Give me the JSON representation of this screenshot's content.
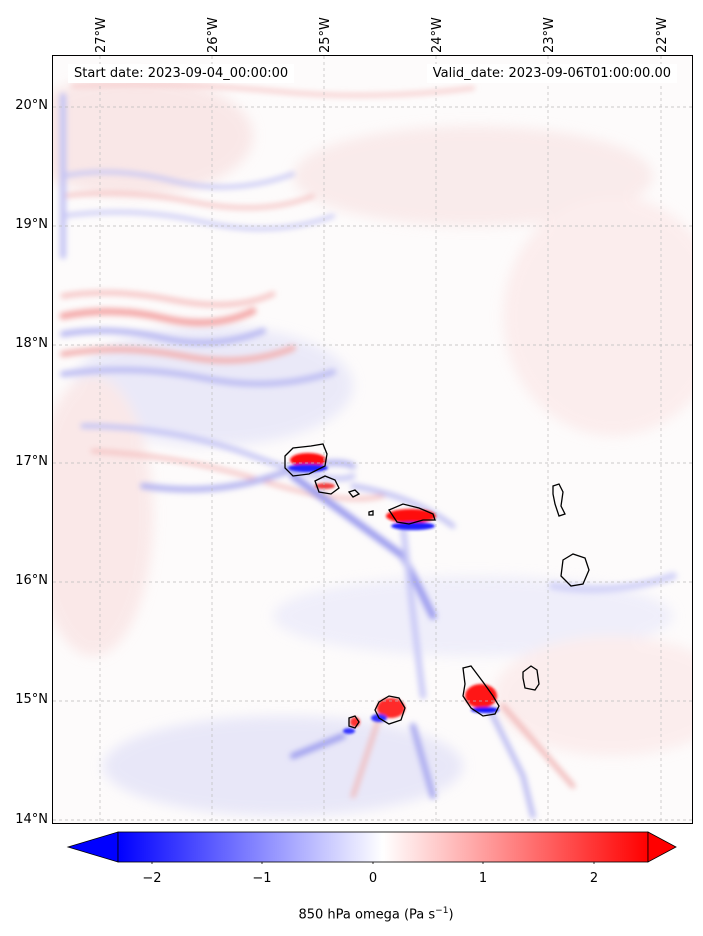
{
  "map": {
    "start_date": "Start date: 2023-09-04_00:00:00",
    "valid_date": "Valid_date: 2023-09-06T01:00:00.00",
    "longitude_labels": [
      "27°W",
      "26°W",
      "25°W",
      "24°W",
      "23°W",
      "22°W"
    ],
    "latitude_labels": [
      "20°N",
      "19°N",
      "18°N",
      "17°N",
      "16°N",
      "15°N",
      "14°N"
    ],
    "field": "850 hPa omega",
    "colormap": "bwr",
    "colors": {
      "negative": "#0000ff",
      "zero": "#ffffff",
      "positive": "#ff0000",
      "coastline": "#000000",
      "gridline": "#bbbbbb"
    }
  },
  "colorbar": {
    "ticks": [
      "−2",
      "−1",
      "0",
      "1",
      "2"
    ],
    "range": [
      -2.6,
      2.6
    ],
    "extend": "both",
    "label_main": "850 hPa omega (Pa s",
    "label_sup": "−1",
    "label_end": ")"
  }
}
